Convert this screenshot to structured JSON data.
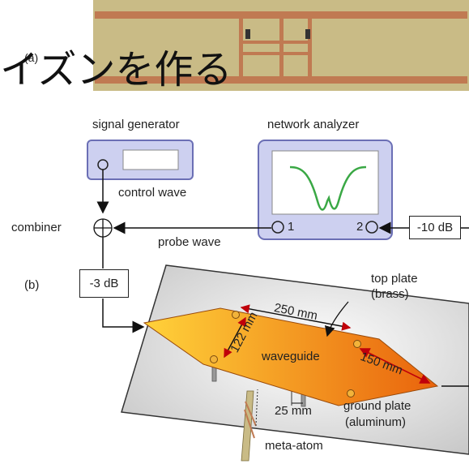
{
  "overlay_title": "イズンを作る",
  "labels": {
    "panel_a": "(a)",
    "panel_b": "(b)",
    "signal_generator": "signal generator",
    "network_analyzer": "network analyzer",
    "control_wave": "control wave",
    "combiner": "combiner",
    "probe_wave": "probe wave",
    "port1": "1",
    "port2": "2",
    "atten_10": "-10 dB",
    "atten_3": "-3 dB",
    "top_plate": "top plate",
    "top_plate_material": "(brass)",
    "dim_250": "250 mm",
    "dim_122": "122 mm",
    "dim_150": "150 mm",
    "waveguide": "waveguide",
    "dim_25": "25 mm",
    "ground_plate": "ground plate",
    "ground_plate_material": "(aluminum)",
    "meta_atom": "meta-atom"
  },
  "colors": {
    "board": "#c9bb86",
    "copper": "#c07a52",
    "instrument_fill": "#cdd0f0",
    "instrument_stroke": "#6b6fb5",
    "screen_curve": "#3aa845",
    "waveguide_start": "#ffd23a",
    "waveguide_end": "#e9630c",
    "ground": "#d9d9d9"
  }
}
